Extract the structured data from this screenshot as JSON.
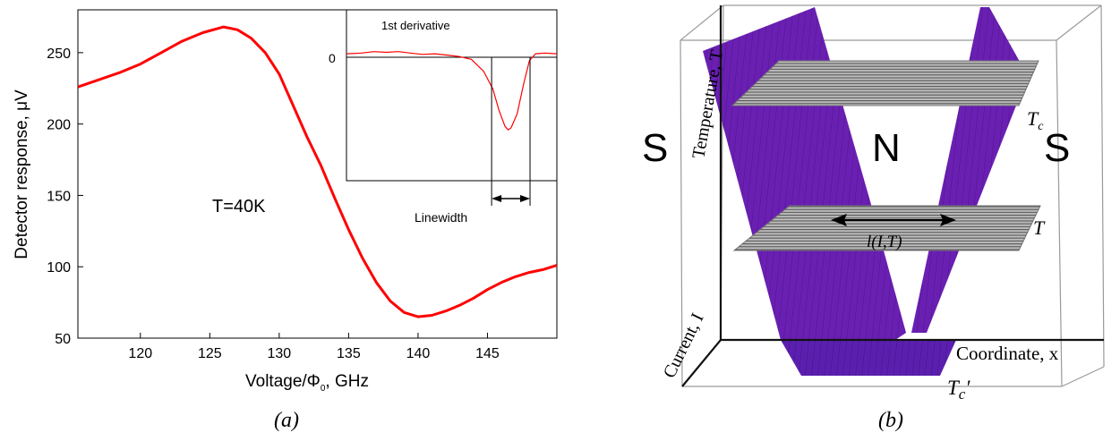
{
  "chart_data": [
    {
      "type": "line",
      "panel_label": "(a)",
      "xlabel": "Voltage/Φ",
      "xlabel_sub": "0",
      "xlabel_tail": ", GHz",
      "ylabel": "Detector response, μV",
      "xlim": [
        115.5,
        150
      ],
      "ylim": [
        50,
        280
      ],
      "xticks": [
        "120",
        "125",
        "130",
        "135",
        "140",
        "145"
      ],
      "yticks": [
        "50",
        "100",
        "150",
        "200",
        "250"
      ],
      "annotation": "T=40K",
      "series_color": "#ff0000",
      "x": [
        115.5,
        117,
        118.5,
        120,
        121.5,
        123,
        124.5,
        126,
        127,
        128,
        129,
        130,
        131,
        132,
        133,
        134,
        135,
        136,
        137,
        138,
        139,
        140,
        141,
        142,
        143,
        144,
        145,
        146,
        147,
        148,
        149,
        150
      ],
      "y": [
        226,
        231,
        236,
        242,
        250,
        258,
        264,
        268,
        266,
        260,
        250,
        235,
        213,
        191,
        171,
        148,
        126,
        106,
        89,
        76,
        68,
        65,
        66,
        69,
        73,
        78,
        84,
        89,
        93,
        96,
        98,
        101
      ],
      "inset": {
        "title": "1st derivative",
        "zero_label": "0",
        "linewidth_label": "Linewidth",
        "x": [
          115.5,
          118,
          120,
          122,
          124,
          126,
          128,
          130,
          132,
          134,
          136,
          138,
          139.5,
          140.5,
          141.5,
          142,
          142.5,
          143.5,
          144.5,
          145.5,
          146.5,
          148,
          150
        ],
        "y": [
          5,
          6,
          8,
          7,
          8,
          6,
          4,
          5,
          3,
          1,
          -3,
          -20,
          -45,
          -75,
          -98,
          -103,
          -100,
          -80,
          -40,
          -5,
          5,
          6,
          5
        ],
        "ylim": [
          -175,
          20
        ],
        "linewidth_x": [
          139.3,
          145.6
        ]
      }
    },
    {
      "type": "diagram-3d",
      "panel_label": "(b)",
      "region_left": "S",
      "region_middle": "N",
      "region_right": "S",
      "axis_z": "Temperature, T",
      "axis_y": "Current, I",
      "axis_x": "Coordinate, x",
      "plane_top": "T",
      "plane_top_sub": "c",
      "plane_mid": "T",
      "bottom_label": "T",
      "bottom_label_sub": "c",
      "bottom_label_tail": "′",
      "length_label": "l(I,T)"
    }
  ]
}
